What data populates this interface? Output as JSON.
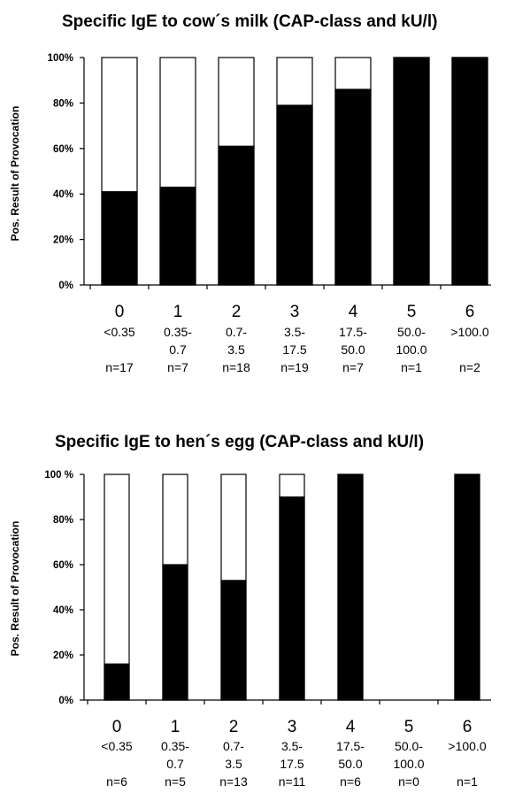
{
  "chart_data": [
    {
      "type": "bar",
      "stacked": true,
      "title": "Specific IgE to cow´s milk (CAP-class and kU/l)",
      "ylabel": "Pos. Result of Provocation",
      "ylim": [
        0,
        100
      ],
      "yticks": [
        "0%",
        "20%",
        "40%",
        "60%",
        "80%",
        "100%"
      ],
      "categories": [
        {
          "class": "0",
          "range": [
            "<0.35"
          ],
          "n": "n=17"
        },
        {
          "class": "1",
          "range": [
            "0.35-",
            "0.7"
          ],
          "n": "n=7"
        },
        {
          "class": "2",
          "range": [
            "0.7-",
            "3.5"
          ],
          "n": "n=18"
        },
        {
          "class": "3",
          "range": [
            "3.5-",
            "17.5"
          ],
          "n": "n=19"
        },
        {
          "class": "4",
          "range": [
            "17.5-",
            "50.0"
          ],
          "n": "n=7"
        },
        {
          "class": "5",
          "range": [
            "50.0-",
            "100.0"
          ],
          "n": "n=1"
        },
        {
          "class": "6",
          "range": [
            ">100.0"
          ],
          "n": "n=2"
        }
      ],
      "values": [
        41,
        43,
        61,
        79,
        86,
        100,
        100
      ],
      "colors": {
        "positive": "#000000",
        "total": "#ffffff"
      }
    },
    {
      "type": "bar",
      "stacked": true,
      "title": "Specific IgE to hen´s egg (CAP-class and kU/l)",
      "ylabel": "Pos. Result of Provocation",
      "ylim": [
        0,
        100
      ],
      "yticks": [
        "0%",
        "20%",
        "40%",
        "60%",
        "80%",
        "100 %"
      ],
      "categories": [
        {
          "class": "0",
          "range": [
            "<0.35"
          ],
          "n": "n=6"
        },
        {
          "class": "1",
          "range": [
            "0.35-",
            "0.7"
          ],
          "n": "n=5"
        },
        {
          "class": "2",
          "range": [
            "0.7-",
            "3.5"
          ],
          "n": "n=13"
        },
        {
          "class": "3",
          "range": [
            "3.5-",
            "17.5"
          ],
          "n": "n=11"
        },
        {
          "class": "4",
          "range": [
            "17.5-",
            "50.0"
          ],
          "n": "n=6"
        },
        {
          "class": "5",
          "range": [
            "50.0-",
            "100.0"
          ],
          "n": "n=0"
        },
        {
          "class": "6",
          "range": [
            ">100.0"
          ],
          "n": "n=1"
        }
      ],
      "values": [
        16,
        60,
        53,
        90,
        100,
        null,
        100
      ],
      "colors": {
        "positive": "#000000",
        "total": "#ffffff"
      }
    }
  ]
}
